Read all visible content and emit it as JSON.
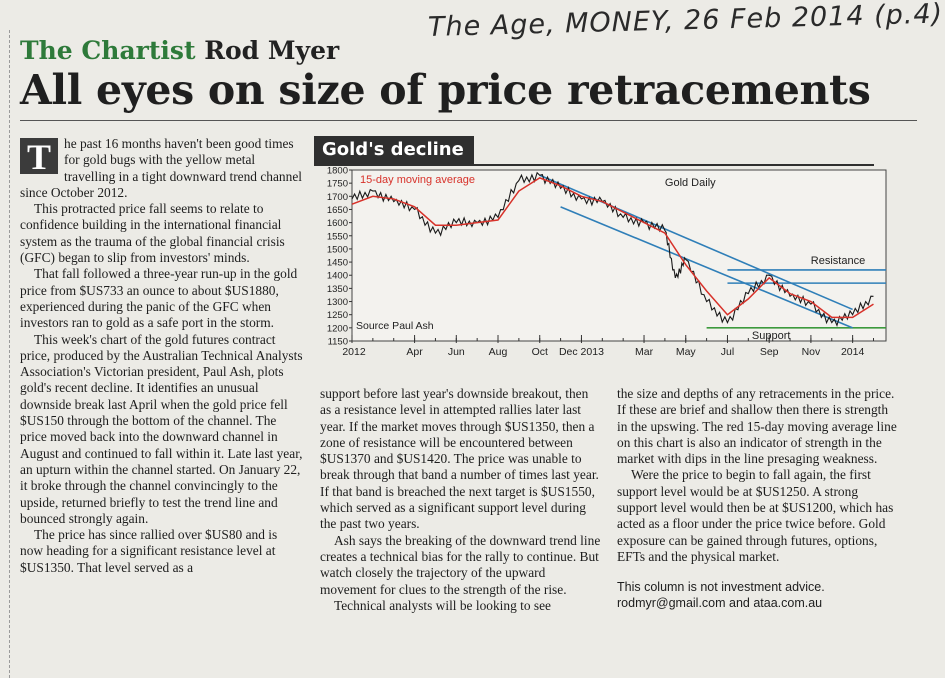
{
  "header": {
    "kicker": "The Chartist",
    "author": "Rod Myer",
    "handwritten_note": "The Age, MONEY, 26 Feb 2014 (p.4)",
    "headline": "All eyes on size of price retracements"
  },
  "article": {
    "dropcap": "T",
    "col1": [
      "he past 16 months haven't been good times for gold bugs with the yellow metal travelling in a tight downward trend channel since October 2012.",
      "This protracted price fall seems to relate to confidence building in the international financial system as the trauma of the global financial crisis (GFC) began to slip from investors' minds.",
      "That fall followed a three-year run-up in the gold price from $US733 an ounce to about $US1880, experienced during the panic of the GFC when investors ran to gold as a safe port in the storm.",
      "This week's chart of the gold futures contract price, produced by the Australian Technical Analysts Association's Victorian president, Paul Ash, plots gold's recent decline. It identifies an unusual downside break last April when the gold price fell $US150 through the bottom of the channel. The price moved back into the downward channel in August and continued to fall within it. Late last year, an upturn within the channel started. On January 22, it broke through the channel convincingly to the upside, returned briefly to test the trend line and bounced strongly again.",
      "The price has since rallied over $US80 and is now heading for a significant resistance level at $US1350. That level served as a"
    ],
    "col2": [
      "support before last year's downside breakout, then as a resistance level in attempted rallies later last year. If the market moves through $US1350, then a zone of resistance will be encountered between $US1370 and $US1420. The price was unable to break through that band a number of times last year. If that band is breached the next target is $US1550, which served as a significant support level during the past two years.",
      "Ash says the breaking of the downward trend line creates a technical bias for the rally to continue. But watch closely the trajectory of the upward movement for clues to the strength of the rise.",
      "Technical analysts will be looking to see"
    ],
    "col3": [
      "the size and depths of any retracements in the price. If these are brief and shallow then there is strength in the upswing. The red 15-day moving average line on this chart is also an indicator of strength in the market with dips in the line presaging weakness.",
      "Were the price to begin to fall again, the first support level would be at $US1250. A strong support level would then be at $US1200, which has acted as a floor under the price twice before. Gold exposure can be gained through futures, options, EFTs and the physical market."
    ],
    "footer_note": "This column is not investment advice.",
    "footer_contact": "rodmyr@gmail.com and ataa.com.au"
  },
  "colors": {
    "kicker_green": "#2e7a3a",
    "price_line": "#1a1a1a",
    "moving_average": "#d7322a",
    "channel_lines": "#2f7fb8",
    "resistance": "#2f7fb8",
    "support": "#3d9a3d"
  },
  "chart_data": {
    "type": "line",
    "title": "Gold's decline",
    "subtitle": "Gold Daily",
    "source": "Source Paul Ash",
    "legend": "15-day moving average",
    "annotations": {
      "resistance": "Resistance",
      "support": "Support"
    },
    "x_tick_labels": [
      "2012",
      "Apr",
      "Jun",
      "Aug",
      "Oct",
      "Dec 2013",
      "Mar",
      "May",
      "Jul",
      "Sep",
      "Nov",
      "2014"
    ],
    "y_ticks": [
      1150,
      1200,
      1250,
      1300,
      1350,
      1400,
      1450,
      1500,
      1550,
      1600,
      1650,
      1700,
      1750,
      1800
    ],
    "ylim": [
      1150,
      1800
    ],
    "x_range": [
      "2012-01",
      "2014-02"
    ],
    "series": [
      {
        "name": "Gold Daily",
        "x": [
          "2012-01",
          "2012-02",
          "2012-03",
          "2012-04",
          "2012-05",
          "2012-06",
          "2012-07",
          "2012-08",
          "2012-09",
          "2012-10",
          "2012-11",
          "2012-12",
          "2013-01",
          "2013-02",
          "2013-03",
          "2013-04a",
          "2013-04b",
          "2013-05",
          "2013-06",
          "2013-07",
          "2013-08",
          "2013-09",
          "2013-10",
          "2013-11",
          "2013-12",
          "2014-01",
          "2014-02"
        ],
        "values": [
          1690,
          1720,
          1680,
          1650,
          1560,
          1600,
          1600,
          1620,
          1760,
          1780,
          1730,
          1690,
          1680,
          1620,
          1600,
          1570,
          1390,
          1460,
          1300,
          1220,
          1330,
          1400,
          1320,
          1290,
          1220,
          1250,
          1320
        ]
      },
      {
        "name": "15-day moving average",
        "x": [
          "2012-01",
          "2012-02",
          "2012-03",
          "2012-04",
          "2012-05",
          "2012-06",
          "2012-07",
          "2012-08",
          "2012-09",
          "2012-10",
          "2012-11",
          "2012-12",
          "2013-01",
          "2013-02",
          "2013-03",
          "2013-04",
          "2013-05",
          "2013-06",
          "2013-07",
          "2013-08",
          "2013-09",
          "2013-10",
          "2013-11",
          "2013-12",
          "2014-01",
          "2014-02"
        ],
        "values": [
          1670,
          1700,
          1690,
          1660,
          1590,
          1590,
          1600,
          1610,
          1720,
          1770,
          1740,
          1700,
          1680,
          1640,
          1600,
          1560,
          1440,
          1340,
          1250,
          1310,
          1390,
          1330,
          1300,
          1240,
          1240,
          1290
        ]
      }
    ],
    "levels": {
      "resistance": [
        1370,
        1420
      ],
      "support": 1200
    },
    "channel": {
      "upper": [
        [
          "2012-10",
          1780
        ],
        [
          "2014-01",
          1270
        ]
      ],
      "lower": [
        [
          "2012-11",
          1660
        ],
        [
          "2014-01",
          1200
        ]
      ]
    }
  }
}
